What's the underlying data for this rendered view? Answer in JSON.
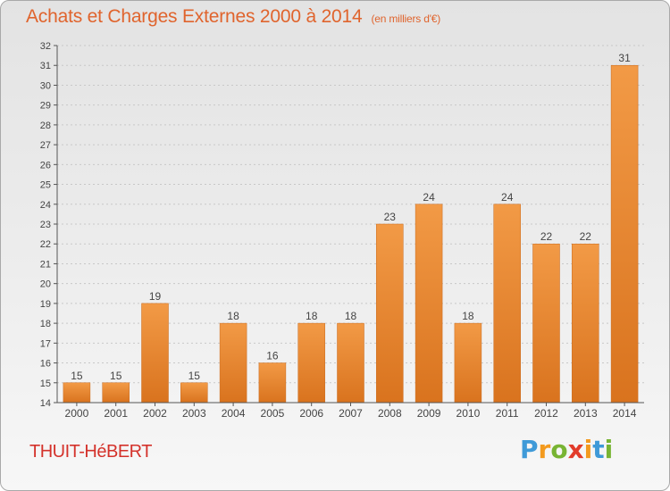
{
  "header": {
    "title": "Achats et Charges Externes 2000 à 2014",
    "unit": "(en milliers d'€)"
  },
  "footer": {
    "commune": "THUIT-HéBERT",
    "logo_letters": [
      {
        "char": "P",
        "color": "#3f9ad8"
      },
      {
        "char": "r",
        "color": "#f39a1e"
      },
      {
        "char": "o",
        "color": "#78b433"
      },
      {
        "char": "x",
        "color": "#e23b2a"
      },
      {
        "char": "i",
        "color": "#f39a1e"
      },
      {
        "char": "t",
        "color": "#3f9ad8"
      },
      {
        "char": "i",
        "color": "#78b433"
      }
    ]
  },
  "chart_data": {
    "type": "bar",
    "title": "Achats et Charges Externes 2000 à 2014",
    "subtitle": "(en milliers d'€)",
    "categories": [
      "2000",
      "2001",
      "2002",
      "2003",
      "2004",
      "2005",
      "2006",
      "2007",
      "2008",
      "2009",
      "2010",
      "2011",
      "2012",
      "2013",
      "2014"
    ],
    "values": [
      15,
      15,
      19,
      15,
      18,
      16,
      18,
      18,
      23,
      24,
      18,
      24,
      22,
      22,
      31
    ],
    "ylim": [
      14,
      32
    ],
    "yticks": [
      14,
      15,
      16,
      17,
      18,
      19,
      20,
      21,
      22,
      23,
      24,
      25,
      26,
      27,
      28,
      29,
      30,
      31,
      32
    ],
    "grid": true,
    "bar_color": "#f29a46",
    "bar_color_dark": "#d9731e",
    "grid_color": "#c8c8c8",
    "axis_color": "#555555"
  }
}
